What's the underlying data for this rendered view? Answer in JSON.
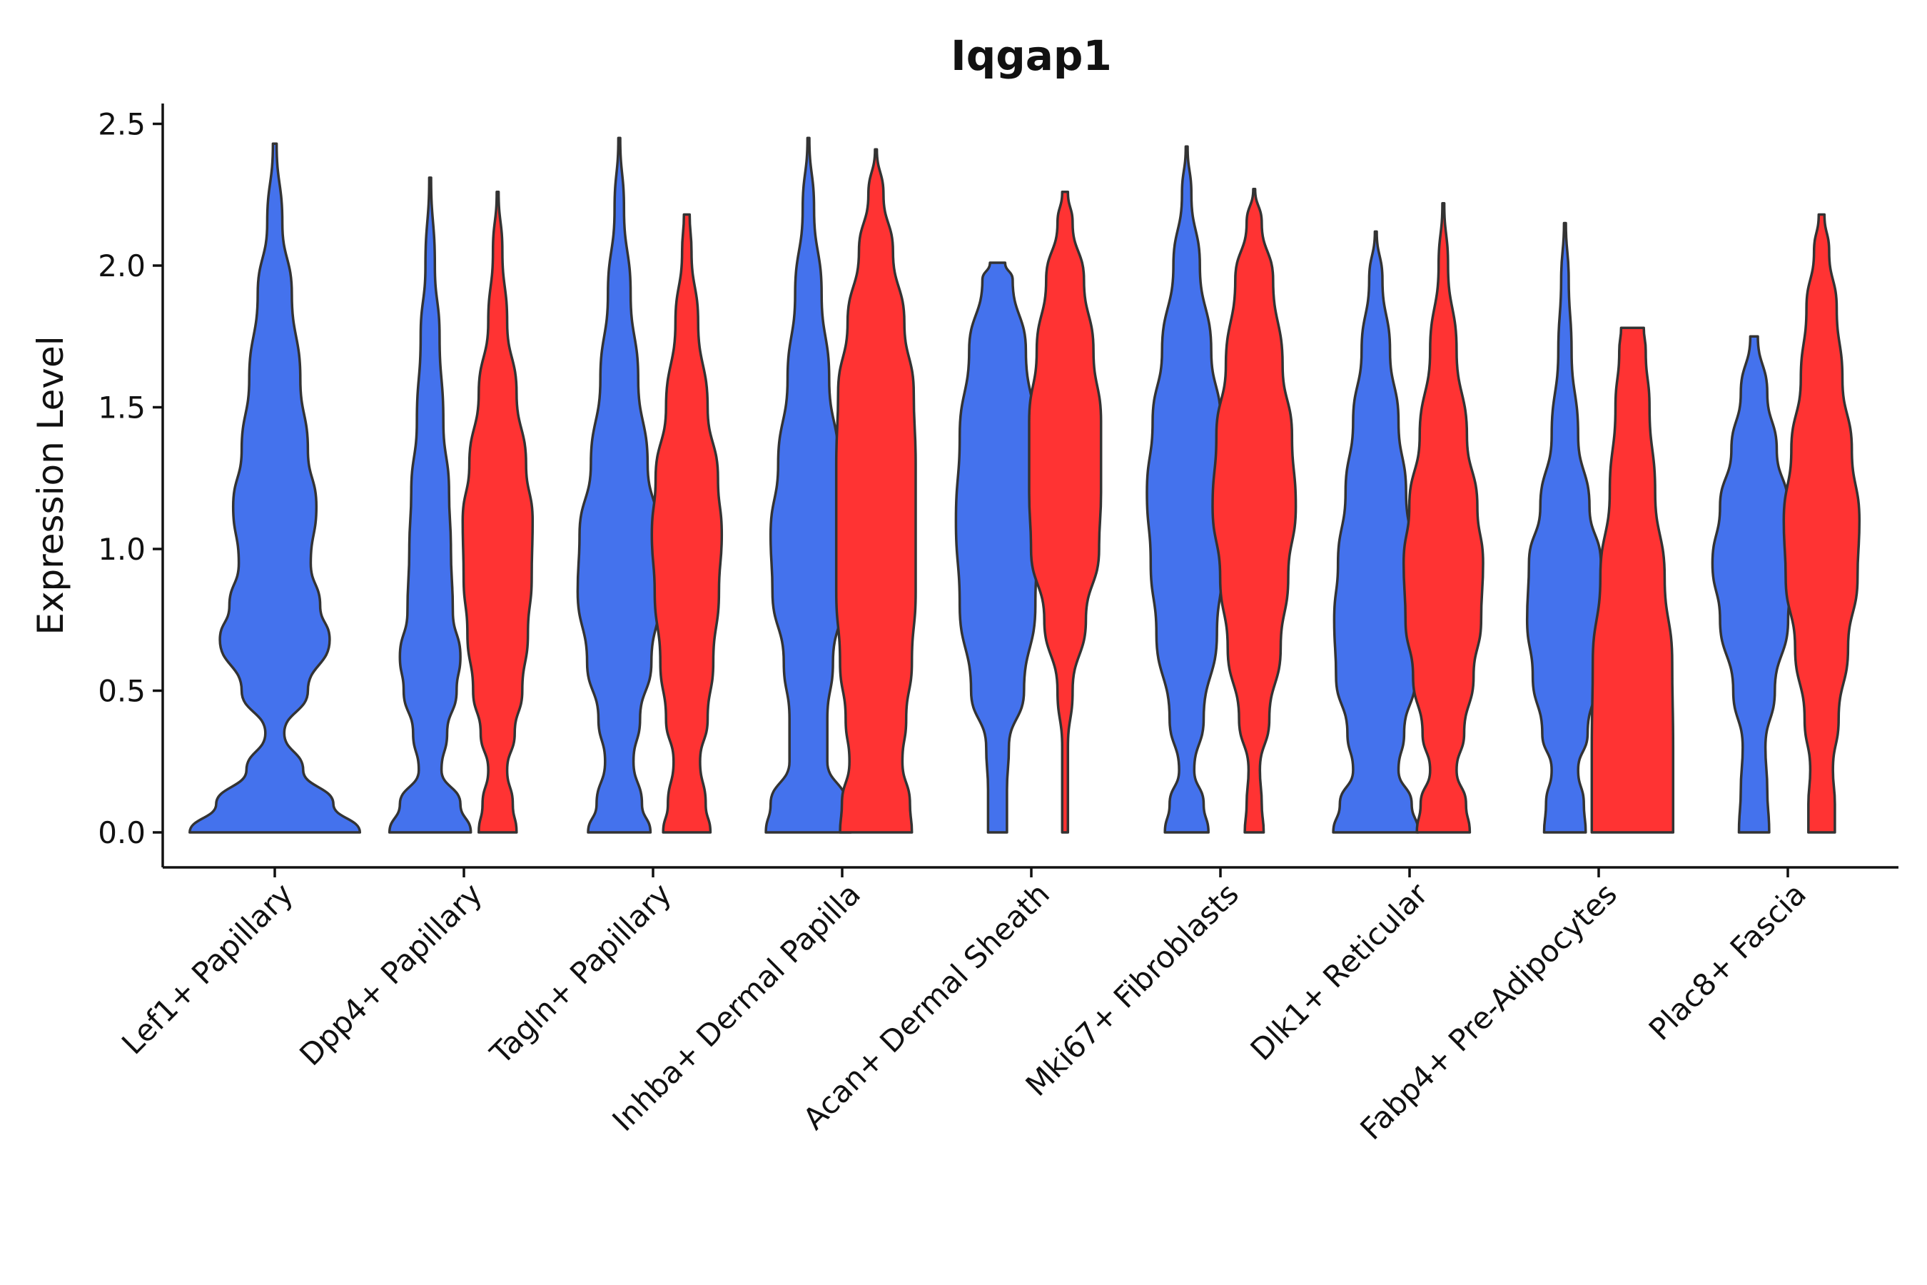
{
  "chart_data": {
    "type": "violin",
    "title": "Iqgap1",
    "xlabel": "",
    "ylabel": "Expression Level",
    "ylim": [
      -0.12,
      2.58
    ],
    "yticks": [
      "0.0",
      "0.5",
      "1.0",
      "1.5",
      "2.0",
      "2.5"
    ],
    "categories": [
      "Lef1+ Papillary",
      "Dpp4+ Papillary",
      "Tagln+ Papillary",
      "Inhba+ Dermal Papilla",
      "Acan+ Dermal Sheath",
      "Mki67+ Fibroblasts",
      "Dlk1+ Reticular",
      "Fabp4+ Pre-Adipocytes",
      "Plac8+ Fascia"
    ],
    "colors": {
      "blue": "#4472ED",
      "red": "#FF3333"
    },
    "violins": [
      {
        "group": 0,
        "color": "blue",
        "offset": 0.0,
        "profile": [
          [
            0,
            0.9
          ],
          [
            0.1,
            0.62
          ],
          [
            0.22,
            0.3
          ],
          [
            0.35,
            0.1
          ],
          [
            0.5,
            0.35
          ],
          [
            0.68,
            0.58
          ],
          [
            0.8,
            0.48
          ],
          [
            0.95,
            0.38
          ],
          [
            1.15,
            0.44
          ],
          [
            1.35,
            0.35
          ],
          [
            1.6,
            0.27
          ],
          [
            1.9,
            0.18
          ],
          [
            2.15,
            0.08
          ],
          [
            2.43,
            0.02
          ]
        ]
      },
      {
        "group": 1,
        "color": "blue",
        "offset": -0.17,
        "profile": [
          [
            0,
            0.43
          ],
          [
            0.1,
            0.32
          ],
          [
            0.22,
            0.12
          ],
          [
            0.35,
            0.18
          ],
          [
            0.5,
            0.28
          ],
          [
            0.62,
            0.32
          ],
          [
            0.78,
            0.24
          ],
          [
            1.0,
            0.22
          ],
          [
            1.2,
            0.2
          ],
          [
            1.45,
            0.14
          ],
          [
            1.75,
            0.1
          ],
          [
            2.0,
            0.05
          ],
          [
            2.31,
            0.01
          ]
        ]
      },
      {
        "group": 1,
        "color": "red",
        "offset": 0.17,
        "profile": [
          [
            0,
            0.2
          ],
          [
            0.1,
            0.16
          ],
          [
            0.22,
            0.1
          ],
          [
            0.35,
            0.18
          ],
          [
            0.5,
            0.26
          ],
          [
            0.7,
            0.32
          ],
          [
            0.9,
            0.36
          ],
          [
            1.1,
            0.37
          ],
          [
            1.3,
            0.3
          ],
          [
            1.55,
            0.2
          ],
          [
            1.8,
            0.1
          ],
          [
            2.05,
            0.05
          ],
          [
            2.26,
            0.01
          ]
        ]
      },
      {
        "group": 2,
        "color": "blue",
        "offset": -0.17,
        "profile": [
          [
            0,
            0.33
          ],
          [
            0.1,
            0.24
          ],
          [
            0.25,
            0.15
          ],
          [
            0.4,
            0.22
          ],
          [
            0.6,
            0.34
          ],
          [
            0.85,
            0.44
          ],
          [
            1.05,
            0.42
          ],
          [
            1.3,
            0.3
          ],
          [
            1.6,
            0.2
          ],
          [
            1.9,
            0.12
          ],
          [
            2.2,
            0.05
          ],
          [
            2.45,
            0.01
          ]
        ]
      },
      {
        "group": 2,
        "color": "red",
        "offset": 0.17,
        "profile": [
          [
            0,
            0.25
          ],
          [
            0.1,
            0.2
          ],
          [
            0.25,
            0.14
          ],
          [
            0.4,
            0.22
          ],
          [
            0.6,
            0.28
          ],
          [
            0.85,
            0.34
          ],
          [
            1.05,
            0.37
          ],
          [
            1.25,
            0.33
          ],
          [
            1.5,
            0.22
          ],
          [
            1.8,
            0.12
          ],
          [
            2.05,
            0.05
          ],
          [
            2.18,
            0.03
          ]
        ]
      },
      {
        "group": 3,
        "color": "blue",
        "offset": -0.17,
        "profile": [
          [
            0,
            0.45
          ],
          [
            0.1,
            0.4
          ],
          [
            0.25,
            0.2
          ],
          [
            0.4,
            0.2
          ],
          [
            0.6,
            0.26
          ],
          [
            0.85,
            0.38
          ],
          [
            1.05,
            0.4
          ],
          [
            1.3,
            0.32
          ],
          [
            1.6,
            0.22
          ],
          [
            1.9,
            0.14
          ],
          [
            2.2,
            0.06
          ],
          [
            2.45,
            0.01
          ]
        ]
      },
      {
        "group": 3,
        "color": "red",
        "offset": 0.17,
        "profile": [
          [
            0,
            0.38
          ],
          [
            0.1,
            0.36
          ],
          [
            0.25,
            0.28
          ],
          [
            0.4,
            0.32
          ],
          [
            0.6,
            0.38
          ],
          [
            0.85,
            0.42
          ],
          [
            1.05,
            0.42
          ],
          [
            1.3,
            0.42
          ],
          [
            1.55,
            0.4
          ],
          [
            1.8,
            0.3
          ],
          [
            2.05,
            0.18
          ],
          [
            2.25,
            0.08
          ],
          [
            2.41,
            0.01
          ]
        ]
      },
      {
        "group": 4,
        "color": "blue",
        "offset": -0.17,
        "profile": [
          [
            0,
            0.1
          ],
          [
            0.15,
            0.1
          ],
          [
            0.3,
            0.12
          ],
          [
            0.5,
            0.28
          ],
          [
            0.8,
            0.4
          ],
          [
            1.1,
            0.44
          ],
          [
            1.4,
            0.4
          ],
          [
            1.7,
            0.3
          ],
          [
            1.95,
            0.16
          ],
          [
            2.01,
            0.08
          ]
        ]
      },
      {
        "group": 4,
        "color": "red",
        "offset": 0.17,
        "profile": [
          [
            0,
            0.03
          ],
          [
            0.15,
            0.03
          ],
          [
            0.3,
            0.03
          ],
          [
            0.5,
            0.08
          ],
          [
            0.75,
            0.22
          ],
          [
            1.0,
            0.36
          ],
          [
            1.2,
            0.38
          ],
          [
            1.45,
            0.38
          ],
          [
            1.7,
            0.3
          ],
          [
            1.95,
            0.2
          ],
          [
            2.15,
            0.08
          ],
          [
            2.26,
            0.03
          ]
        ]
      },
      {
        "group": 5,
        "color": "blue",
        "offset": -0.17,
        "profile": [
          [
            0,
            0.23
          ],
          [
            0.1,
            0.18
          ],
          [
            0.22,
            0.08
          ],
          [
            0.4,
            0.18
          ],
          [
            0.7,
            0.32
          ],
          [
            0.95,
            0.38
          ],
          [
            1.2,
            0.42
          ],
          [
            1.45,
            0.36
          ],
          [
            1.7,
            0.26
          ],
          [
            2.0,
            0.14
          ],
          [
            2.25,
            0.05
          ],
          [
            2.42,
            0.01
          ]
        ]
      },
      {
        "group": 5,
        "color": "red",
        "offset": 0.17,
        "profile": [
          [
            0,
            0.1
          ],
          [
            0.1,
            0.08
          ],
          [
            0.22,
            0.06
          ],
          [
            0.4,
            0.16
          ],
          [
            0.65,
            0.28
          ],
          [
            0.9,
            0.36
          ],
          [
            1.15,
            0.44
          ],
          [
            1.4,
            0.4
          ],
          [
            1.65,
            0.3
          ],
          [
            1.95,
            0.2
          ],
          [
            2.15,
            0.08
          ],
          [
            2.27,
            0.01
          ]
        ]
      },
      {
        "group": 6,
        "color": "blue",
        "offset": -0.17,
        "profile": [
          [
            0,
            0.45
          ],
          [
            0.1,
            0.38
          ],
          [
            0.22,
            0.24
          ],
          [
            0.35,
            0.3
          ],
          [
            0.55,
            0.42
          ],
          [
            0.75,
            0.44
          ],
          [
            0.95,
            0.4
          ],
          [
            1.2,
            0.32
          ],
          [
            1.45,
            0.24
          ],
          [
            1.7,
            0.15
          ],
          [
            1.95,
            0.07
          ],
          [
            2.12,
            0.01
          ]
        ]
      },
      {
        "group": 6,
        "color": "red",
        "offset": 0.17,
        "profile": [
          [
            0,
            0.28
          ],
          [
            0.1,
            0.24
          ],
          [
            0.22,
            0.14
          ],
          [
            0.35,
            0.22
          ],
          [
            0.55,
            0.32
          ],
          [
            0.75,
            0.4
          ],
          [
            0.95,
            0.42
          ],
          [
            1.15,
            0.36
          ],
          [
            1.4,
            0.25
          ],
          [
            1.7,
            0.14
          ],
          [
            2.0,
            0.05
          ],
          [
            2.22,
            0.01
          ]
        ]
      },
      {
        "group": 7,
        "color": "blue",
        "offset": -0.17,
        "profile": [
          [
            0,
            0.22
          ],
          [
            0.1,
            0.2
          ],
          [
            0.22,
            0.14
          ],
          [
            0.35,
            0.24
          ],
          [
            0.55,
            0.34
          ],
          [
            0.75,
            0.4
          ],
          [
            0.95,
            0.38
          ],
          [
            1.15,
            0.26
          ],
          [
            1.4,
            0.14
          ],
          [
            1.7,
            0.07
          ],
          [
            1.95,
            0.04
          ],
          [
            2.15,
            0.01
          ]
        ]
      },
      {
        "group": 7,
        "color": "red",
        "offset": 0.17,
        "profile": [
          [
            0,
            0.43
          ],
          [
            0.3,
            0.43
          ],
          [
            0.6,
            0.42
          ],
          [
            0.9,
            0.34
          ],
          [
            1.2,
            0.24
          ],
          [
            1.5,
            0.18
          ],
          [
            1.7,
            0.14
          ],
          [
            1.78,
            0.12
          ]
        ]
      },
      {
        "group": 8,
        "color": "blue",
        "offset": -0.17,
        "profile": [
          [
            0,
            0.16
          ],
          [
            0.15,
            0.14
          ],
          [
            0.3,
            0.12
          ],
          [
            0.5,
            0.22
          ],
          [
            0.75,
            0.36
          ],
          [
            0.95,
            0.44
          ],
          [
            1.15,
            0.36
          ],
          [
            1.35,
            0.24
          ],
          [
            1.55,
            0.14
          ],
          [
            1.75,
            0.04
          ]
        ]
      },
      {
        "group": 8,
        "color": "red",
        "offset": 0.17,
        "profile": [
          [
            0,
            0.14
          ],
          [
            0.1,
            0.14
          ],
          [
            0.22,
            0.12
          ],
          [
            0.4,
            0.18
          ],
          [
            0.65,
            0.28
          ],
          [
            0.9,
            0.38
          ],
          [
            1.1,
            0.4
          ],
          [
            1.35,
            0.32
          ],
          [
            1.6,
            0.22
          ],
          [
            1.85,
            0.16
          ],
          [
            2.05,
            0.08
          ],
          [
            2.18,
            0.03
          ]
        ]
      }
    ]
  }
}
